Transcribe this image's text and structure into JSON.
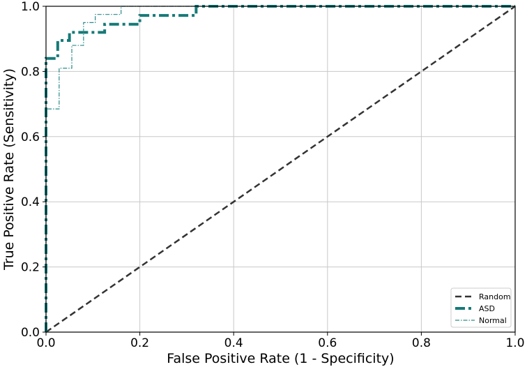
{
  "chart_data": {
    "type": "line",
    "xlabel": "False Positive Rate (1 - Specificity)",
    "ylabel": "True Positive Rate (Sensitivity)",
    "xlim": [
      0,
      1
    ],
    "ylim": [
      0,
      1
    ],
    "xticks": [
      "0.0",
      "0.2",
      "0.4",
      "0.6",
      "0.8",
      "1.0"
    ],
    "yticks": [
      "0.0",
      "0.2",
      "0.4",
      "0.6",
      "0.8",
      "1.0"
    ],
    "grid": true,
    "legend_position": "bottom-right",
    "series": [
      {
        "name": "Random",
        "color": "#333333",
        "style": "dashed",
        "x": [
          0,
          1
        ],
        "y": [
          0,
          1
        ]
      },
      {
        "name": "ASD",
        "color": "#167a78",
        "style": "dash-dot-thick",
        "x": [
          0.0,
          0.0,
          0.0,
          0.025,
          0.025,
          0.05,
          0.05,
          0.125,
          0.125,
          0.2,
          0.2,
          0.32,
          0.32,
          1.0
        ],
        "y": [
          0.0,
          0.84,
          0.84,
          0.84,
          0.895,
          0.895,
          0.92,
          0.92,
          0.945,
          0.945,
          0.972,
          0.972,
          1.0,
          1.0
        ]
      },
      {
        "name": "Normal",
        "color": "#2a8a88",
        "style": "dash-dot-thin",
        "x": [
          0.0,
          0.0,
          0.028,
          0.028,
          0.055,
          0.055,
          0.08,
          0.08,
          0.105,
          0.105,
          0.16,
          0.16,
          1.0
        ],
        "y": [
          0.0,
          0.685,
          0.685,
          0.81,
          0.81,
          0.88,
          0.88,
          0.95,
          0.95,
          0.975,
          0.975,
          1.0,
          1.0
        ]
      }
    ]
  }
}
